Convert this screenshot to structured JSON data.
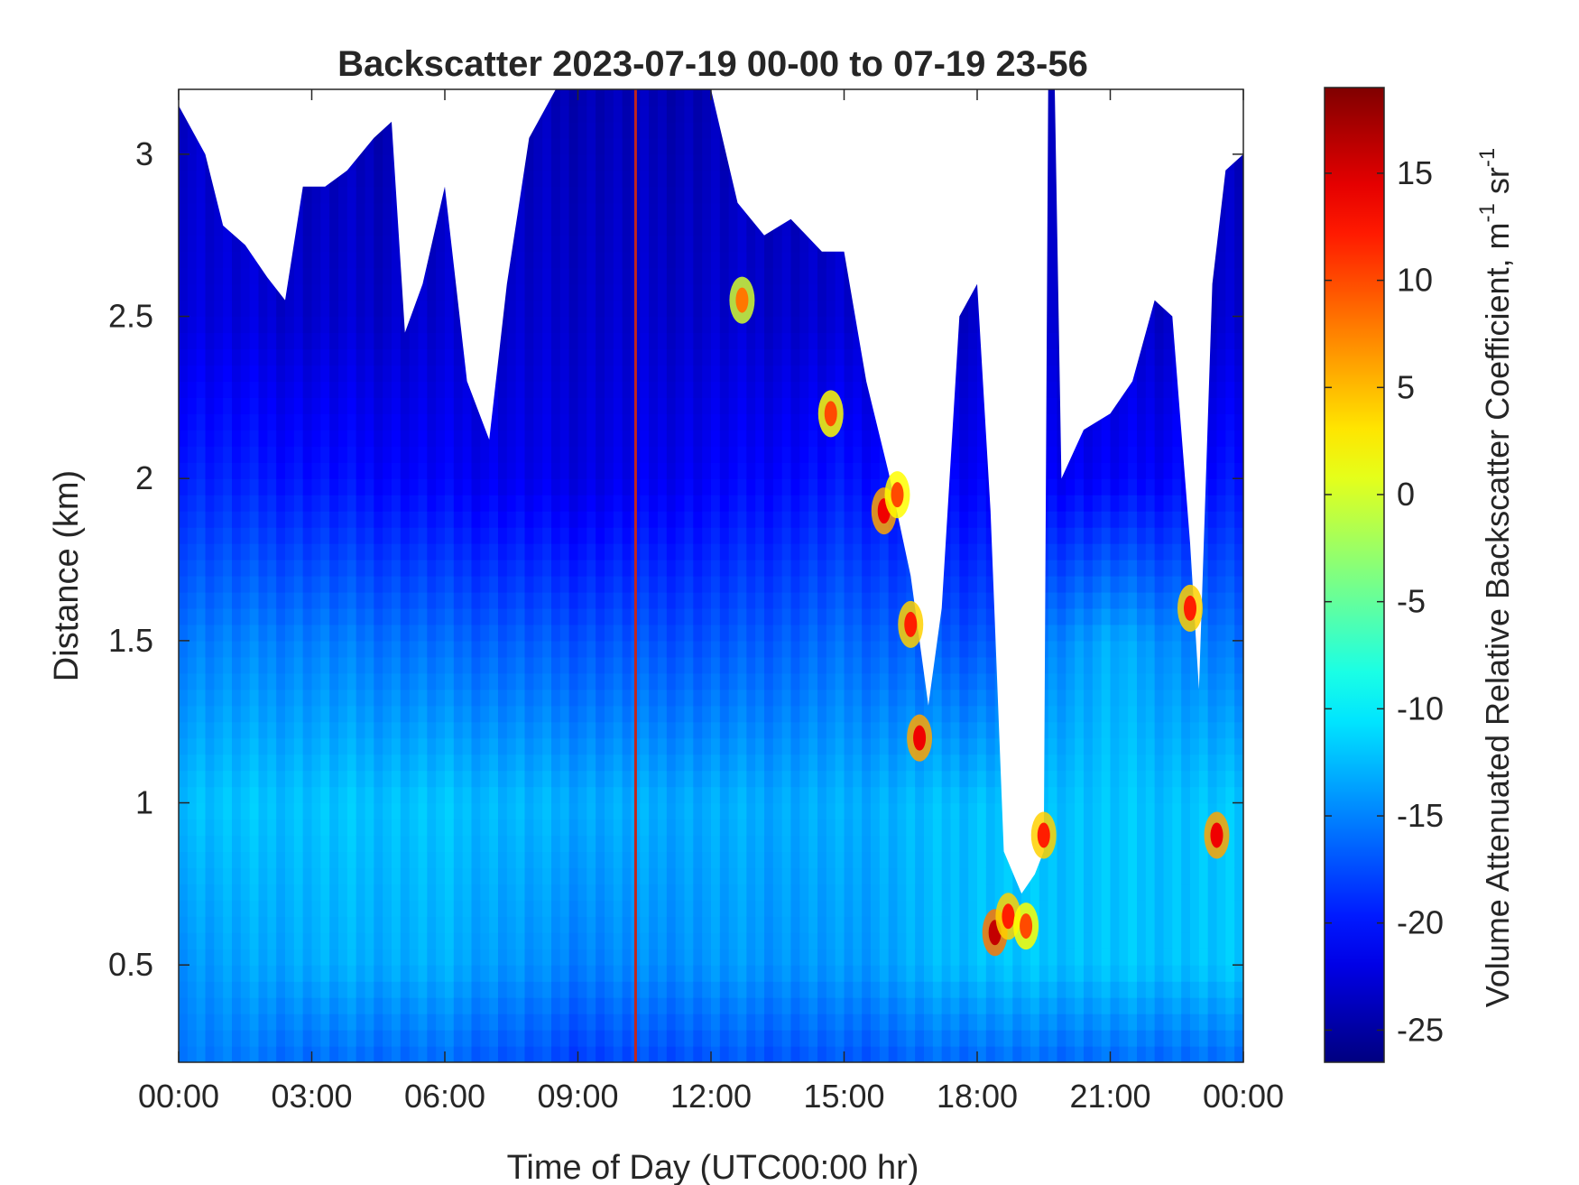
{
  "chart_data": {
    "type": "heatmap",
    "title": "Backscatter 2023-07-19 00-00 to 07-19 23-56",
    "xlabel": "Time of Day (UTC00:00 hr)",
    "ylabel": "Distance (km)",
    "colorbar_label": "Volume Attenuated Relative Backscatter Coefficient, m",
    "colorbar_unit_exp1": "-1",
    "colorbar_unit_sr": " sr",
    "colorbar_unit_exp2": "-1",
    "xlim_hours": [
      0,
      24
    ],
    "ylim_km": [
      0.2,
      3.2
    ],
    "clim": [
      -26.5,
      19
    ],
    "colormap": "jet",
    "x_ticks": [
      {
        "hour": 0,
        "label": "00:00"
      },
      {
        "hour": 3,
        "label": "03:00"
      },
      {
        "hour": 6,
        "label": "06:00"
      },
      {
        "hour": 9,
        "label": "09:00"
      },
      {
        "hour": 12,
        "label": "12:00"
      },
      {
        "hour": 15,
        "label": "15:00"
      },
      {
        "hour": 18,
        "label": "18:00"
      },
      {
        "hour": 21,
        "label": "21:00"
      },
      {
        "hour": 24,
        "label": "00:00"
      }
    ],
    "y_ticks": [
      {
        "value": 0.5,
        "label": "0.5"
      },
      {
        "value": 1,
        "label": "1"
      },
      {
        "value": 1.5,
        "label": "1.5"
      },
      {
        "value": 2,
        "label": "2"
      },
      {
        "value": 2.5,
        "label": "2.5"
      },
      {
        "value": 3,
        "label": "3"
      }
    ],
    "colorbar_ticks": [
      {
        "value": -25,
        "label": "-25"
      },
      {
        "value": -20,
        "label": "-20"
      },
      {
        "value": -15,
        "label": "-15"
      },
      {
        "value": -10,
        "label": "-10"
      },
      {
        "value": -5,
        "label": "-5"
      },
      {
        "value": 0,
        "label": "0"
      },
      {
        "value": 5,
        "label": "5"
      },
      {
        "value": 10,
        "label": "10"
      },
      {
        "value": 15,
        "label": "15"
      }
    ],
    "profile_hours": [
      0,
      3,
      6,
      9,
      12,
      15,
      18,
      21,
      24
    ],
    "profile_heights_km": [
      0.2,
      0.5,
      1.0,
      1.5,
      2.0,
      2.5,
      3.2
    ],
    "value_grid": [
      [
        -15,
        -14,
        -12,
        -15,
        -19,
        -22,
        -23
      ],
      [
        -16,
        -13,
        -12,
        -15,
        -20,
        -23,
        -24
      ],
      [
        -16,
        -13,
        -12,
        -16,
        -21,
        -23,
        -24
      ],
      [
        -18,
        -15,
        -13,
        -17,
        -22,
        -23,
        -24
      ],
      [
        -17,
        -14,
        -13,
        -17,
        -21,
        -23,
        -24
      ],
      [
        -17,
        -14,
        -13,
        -16,
        -20,
        -23,
        -24
      ],
      [
        -16,
        -12,
        -12,
        -17,
        -21,
        -23,
        -24
      ],
      [
        -16,
        -12,
        -12,
        -13,
        -21,
        -23,
        -24
      ],
      [
        -16,
        -12,
        -12,
        -16,
        -20,
        -23,
        -24
      ]
    ],
    "no_data_top_km": [
      [
        0.0,
        3.15
      ],
      [
        0.6,
        3.0
      ],
      [
        1.0,
        2.78
      ],
      [
        1.5,
        2.72
      ],
      [
        2.0,
        2.62
      ],
      [
        2.4,
        2.55
      ],
      [
        2.8,
        2.9
      ],
      [
        3.3,
        2.9
      ],
      [
        3.8,
        2.95
      ],
      [
        4.4,
        3.05
      ],
      [
        4.8,
        3.1
      ],
      [
        5.1,
        2.45
      ],
      [
        5.5,
        2.6
      ],
      [
        6.0,
        2.9
      ],
      [
        6.5,
        2.3
      ],
      [
        7.0,
        2.12
      ],
      [
        7.4,
        2.6
      ],
      [
        7.9,
        3.05
      ],
      [
        8.5,
        3.2
      ],
      [
        12.0,
        3.2
      ],
      [
        12.6,
        2.85
      ],
      [
        13.2,
        2.75
      ],
      [
        13.8,
        2.8
      ],
      [
        14.5,
        2.7
      ],
      [
        15.0,
        2.7
      ],
      [
        15.5,
        2.3
      ],
      [
        16.0,
        2.02
      ],
      [
        16.5,
        1.7
      ],
      [
        16.9,
        1.3
      ],
      [
        17.2,
        1.6
      ],
      [
        17.6,
        2.5
      ],
      [
        18.0,
        2.6
      ],
      [
        18.3,
        1.9
      ],
      [
        18.6,
        0.85
      ],
      [
        19.0,
        0.72
      ],
      [
        19.3,
        0.78
      ],
      [
        19.5,
        0.85
      ],
      [
        19.6,
        3.2
      ],
      [
        19.75,
        3.2
      ],
      [
        19.9,
        2.0
      ],
      [
        20.4,
        2.15
      ],
      [
        21.0,
        2.2
      ],
      [
        21.5,
        2.3
      ],
      [
        22.0,
        2.55
      ],
      [
        22.4,
        2.5
      ],
      [
        22.8,
        1.8
      ],
      [
        23.0,
        1.35
      ],
      [
        23.3,
        2.6
      ],
      [
        23.6,
        2.95
      ],
      [
        24.0,
        3.0
      ]
    ],
    "aerosol_highlights": [
      {
        "hour": 12.7,
        "km": 2.55,
        "value": 8
      },
      {
        "hour": 14.7,
        "km": 2.2,
        "value": 10
      },
      {
        "hour": 15.9,
        "km": 1.9,
        "value": 14
      },
      {
        "hour": 16.2,
        "km": 1.95,
        "value": 10
      },
      {
        "hour": 16.5,
        "km": 1.55,
        "value": 12
      },
      {
        "hour": 16.7,
        "km": 1.2,
        "value": 14
      },
      {
        "hour": 18.4,
        "km": 0.6,
        "value": 16
      },
      {
        "hour": 18.7,
        "km": 0.65,
        "value": 12
      },
      {
        "hour": 19.1,
        "km": 0.62,
        "value": 10
      },
      {
        "hour": 19.5,
        "km": 0.9,
        "value": 12
      },
      {
        "hour": 22.8,
        "km": 1.6,
        "value": 12
      },
      {
        "hour": 23.4,
        "km": 0.9,
        "value": 14
      }
    ],
    "vertical_line_hour": 10.3
  }
}
